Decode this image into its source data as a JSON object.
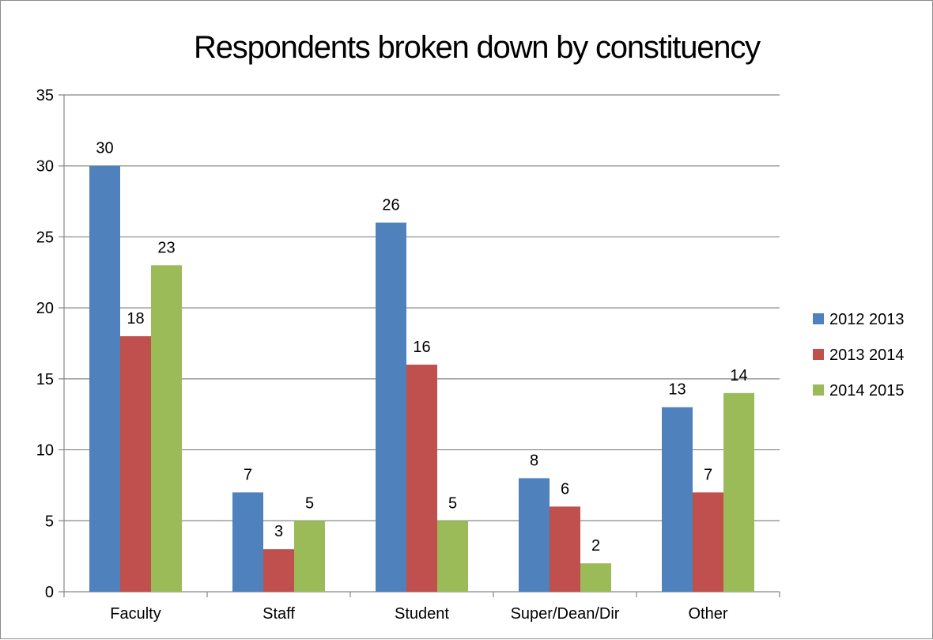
{
  "chart_data": {
    "type": "bar",
    "title": "Respondents broken down by constituency",
    "categories": [
      "Faculty",
      "Staff",
      "Student",
      "Super/Dean/Dir",
      "Other"
    ],
    "series": [
      {
        "name": "2012 2013",
        "color": "#4f81bd",
        "values": [
          30,
          7,
          26,
          8,
          13
        ]
      },
      {
        "name": "2013 2014",
        "color": "#c0504d",
        "values": [
          18,
          3,
          16,
          6,
          7
        ]
      },
      {
        "name": "2014 2015",
        "color": "#9bbb59",
        "values": [
          23,
          5,
          5,
          2,
          14
        ]
      }
    ],
    "ylim": [
      0,
      35
    ],
    "yticks": [
      0,
      5,
      10,
      15,
      20,
      25,
      30,
      35
    ],
    "grid": true,
    "legend": "right",
    "data_labels": true
  }
}
